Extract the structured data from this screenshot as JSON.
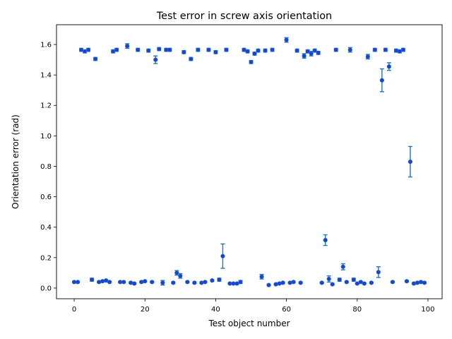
{
  "chart_data": {
    "type": "scatter",
    "title": "Test error in screw axis orientation",
    "xlabel": "Test object number",
    "ylabel": "Orientation error (rad)",
    "xlim": [
      -5,
      104
    ],
    "ylim": [
      -0.07,
      1.73
    ],
    "xticks": [
      0,
      20,
      40,
      60,
      80,
      100
    ],
    "yticks": [
      0.0,
      0.2,
      0.4,
      0.6,
      0.8,
      1.0,
      1.2,
      1.4,
      1.6
    ],
    "ytick_labels": [
      "0.0",
      "0.2",
      "0.4",
      "0.6",
      "0.8",
      "1.0",
      "1.2",
      "1.4",
      "1.6"
    ],
    "grid": false,
    "marker_color": "#1f3fd6",
    "errorbar_color": "#1f77b4",
    "x": [
      0,
      1,
      2,
      3,
      4,
      5,
      6,
      7,
      8,
      9,
      10,
      11,
      12,
      13,
      14,
      15,
      16,
      17,
      18,
      19,
      20,
      21,
      22,
      23,
      24,
      25,
      26,
      27,
      28,
      29,
      30,
      31,
      32,
      33,
      34,
      35,
      36,
      37,
      38,
      39,
      40,
      41,
      42,
      43,
      44,
      45,
      46,
      47,
      48,
      49,
      50,
      51,
      52,
      53,
      54,
      55,
      56,
      57,
      58,
      59,
      60,
      61,
      62,
      63,
      64,
      65,
      66,
      67,
      68,
      69,
      70,
      71,
      72,
      73,
      74,
      75,
      76,
      77,
      78,
      79,
      80,
      81,
      82,
      83,
      84,
      85,
      86,
      87,
      88,
      89,
      90,
      91,
      92,
      93,
      94,
      95,
      96,
      97,
      98,
      99
    ],
    "y": [
      0.04,
      0.04,
      1.565,
      1.555,
      1.565,
      0.055,
      1.505,
      0.04,
      0.045,
      0.05,
      0.04,
      1.555,
      1.565,
      0.04,
      0.04,
      1.59,
      0.035,
      0.03,
      1.565,
      0.04,
      0.045,
      1.56,
      0.04,
      1.5,
      1.57,
      0.035,
      1.565,
      1.565,
      0.035,
      0.1,
      0.08,
      1.55,
      0.04,
      1.505,
      0.035,
      1.565,
      0.035,
      0.04,
      1.565,
      0.05,
      1.55,
      0.055,
      0.21,
      1.565,
      0.03,
      0.03,
      0.03,
      0.04,
      1.565,
      1.555,
      1.485,
      1.54,
      1.56,
      0.075,
      1.56,
      0.02,
      1.565,
      0.025,
      0.03,
      0.035,
      1.63,
      0.035,
      0.04,
      1.56,
      0.035,
      1.525,
      1.555,
      1.54,
      1.56,
      1.545,
      0.035,
      0.315,
      0.06,
      0.025,
      1.565,
      0.055,
      0.14,
      0.04,
      1.565,
      0.055,
      0.03,
      0.04,
      0.03,
      1.52,
      0.035,
      1.565,
      0.105,
      1.365,
      1.565,
      1.455,
      0.04,
      1.56,
      1.555,
      1.565,
      0.045,
      0.83,
      0.03,
      0.035,
      0.04,
      0.035
    ],
    "yerr": [
      0.005,
      0.005,
      0.01,
      0.01,
      0.01,
      0.01,
      0.01,
      0.005,
      0.005,
      0.005,
      0.005,
      0.01,
      0.01,
      0.005,
      0.005,
      0.015,
      0.005,
      0.005,
      0.01,
      0.005,
      0.005,
      0.01,
      0.005,
      0.025,
      0.01,
      0.015,
      0.01,
      0.01,
      0.005,
      0.015,
      0.015,
      0.01,
      0.005,
      0.01,
      0.005,
      0.01,
      0.005,
      0.005,
      0.01,
      0.005,
      0.01,
      0.01,
      0.08,
      0.01,
      0.005,
      0.005,
      0.005,
      0.01,
      0.01,
      0.01,
      0.01,
      0.01,
      0.01,
      0.015,
      0.01,
      0.005,
      0.01,
      0.005,
      0.005,
      0.005,
      0.015,
      0.005,
      0.005,
      0.01,
      0.005,
      0.015,
      0.01,
      0.015,
      0.01,
      0.01,
      0.005,
      0.035,
      0.02,
      0.005,
      0.01,
      0.01,
      0.02,
      0.005,
      0.015,
      0.01,
      0.005,
      0.005,
      0.005,
      0.015,
      0.005,
      0.01,
      0.035,
      0.075,
      0.01,
      0.025,
      0.005,
      0.01,
      0.01,
      0.01,
      0.005,
      0.1,
      0.005,
      0.005,
      0.005,
      0.005
    ]
  }
}
